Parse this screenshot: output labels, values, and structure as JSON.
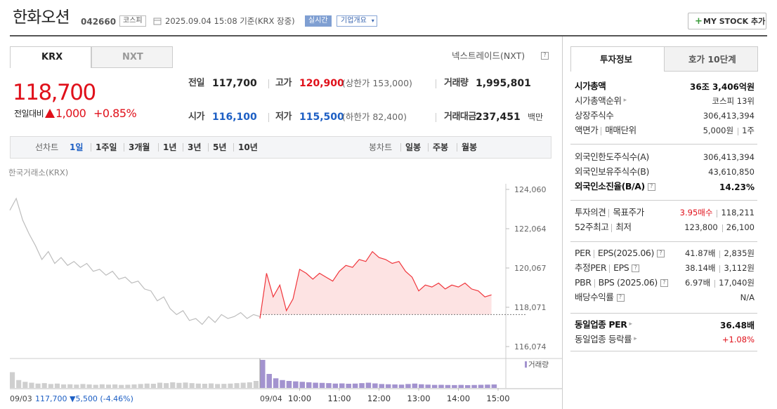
{
  "header": {
    "name": "한화오션",
    "code": "042660",
    "market": "코스피",
    "timestamp": "2025.09.04 15:08 기준(KRX 장중)",
    "realtime": "실시간",
    "company_info": "기업개요",
    "my_stock": "MY STOCK 추가"
  },
  "tabs": {
    "krx": "KRX",
    "nxt": "NXT",
    "nxt_link": "넥스트레이드(NXT)"
  },
  "quote": {
    "price": "118,700",
    "change_label": "전일대비",
    "change": "1,000",
    "change_pct": "+0.85%",
    "rows": [
      [
        {
          "label": "전일",
          "value": "117,700"
        },
        {
          "label": "고가",
          "value": "120,900",
          "extra": "(상한가 153,000)"
        },
        {
          "label": "거래량",
          "value": "1,995,801"
        }
      ],
      [
        {
          "label": "시가",
          "value": "116,100"
        },
        {
          "label": "저가",
          "value": "115,500",
          "extra": "(하한가 82,400)"
        },
        {
          "label": "거래대금",
          "value": "237,451",
          "unit": "백만"
        }
      ]
    ]
  },
  "toolbar": {
    "line_chart": "선차트",
    "periods": [
      "1일",
      "1주일",
      "3개월",
      "1년",
      "3년",
      "5년",
      "10년"
    ],
    "candle_chart": "봉차트",
    "candles": [
      "일봉",
      "주봉",
      "월봉"
    ]
  },
  "chart": {
    "source": "한국거래소(KRX)",
    "volume_label": "거래량",
    "baseline": 117700,
    "ylim": [
      115504,
      124345
    ],
    "yticks": [
      {
        "value": 124060,
        "label": "124,060"
      },
      {
        "value": 122064,
        "label": "122,064"
      },
      {
        "value": 120067,
        "label": "120,067"
      },
      {
        "value": 118071,
        "label": "118,071"
      },
      {
        "value": 116074,
        "label": "116,074"
      }
    ],
    "series": [
      {
        "date": "09/03",
        "summary": "117,700 ▼5,500 (-4.46%)",
        "color": "#bdbdbd",
        "volume_color": "#cfcfcf",
        "xlim": [
          0,
          390
        ],
        "x": [
          0,
          10,
          20,
          30,
          40,
          50,
          60,
          70,
          80,
          90,
          100,
          110,
          120,
          130,
          140,
          150,
          160,
          170,
          180,
          190,
          200,
          210,
          220,
          230,
          240,
          250,
          260,
          270,
          280,
          290,
          300,
          310,
          320,
          330,
          340,
          350,
          360,
          370,
          380,
          390
        ],
        "values": [
          123000,
          123600,
          122500,
          121800,
          121200,
          120500,
          120900,
          120300,
          120600,
          120200,
          120400,
          120100,
          120300,
          119900,
          120000,
          119700,
          119900,
          119500,
          119600,
          119300,
          119400,
          119000,
          118900,
          118400,
          118600,
          118000,
          117700,
          117900,
          117400,
          117500,
          117200,
          117600,
          117300,
          117700,
          117500,
          117600,
          117800,
          117500,
          117700,
          117600
        ],
        "volume": [
          180000,
          90000,
          70000,
          60000,
          50000,
          55000,
          45000,
          50000,
          40000,
          42000,
          38000,
          45000,
          40000,
          36000,
          42000,
          38000,
          40000,
          35000,
          37000,
          40000,
          45000,
          50000,
          48000,
          60000,
          55000,
          65000,
          58000,
          62000,
          55000,
          50000,
          48000,
          52000,
          45000,
          47000,
          50000,
          55000,
          60000,
          65000,
          80000,
          120000
        ]
      },
      {
        "date": "09/04",
        "color": "#f0353b",
        "fill": "#fde3e3",
        "volume_color": "#a393cf",
        "xlim": [
          0,
          360
        ],
        "xticks": [
          {
            "value": 60,
            "label": "10:00"
          },
          {
            "value": 120,
            "label": "11:00"
          },
          {
            "value": 180,
            "label": "12:00"
          },
          {
            "value": 240,
            "label": "13:00"
          },
          {
            "value": 300,
            "label": "14:00"
          },
          {
            "value": 360,
            "label": "15:00"
          }
        ],
        "x": [
          0,
          10,
          20,
          30,
          40,
          50,
          60,
          70,
          80,
          90,
          100,
          110,
          120,
          130,
          140,
          150,
          160,
          170,
          180,
          190,
          200,
          210,
          220,
          230,
          240,
          250,
          260,
          270,
          280,
          290,
          300,
          310,
          320,
          330,
          340,
          350
        ],
        "values": [
          117500,
          119800,
          118600,
          119200,
          117900,
          118500,
          120000,
          119800,
          119500,
          119800,
          119600,
          119400,
          119900,
          120200,
          120100,
          120500,
          120400,
          120900,
          120600,
          120500,
          120300,
          120400,
          119900,
          119600,
          118900,
          119200,
          119100,
          119300,
          119000,
          119200,
          119100,
          119300,
          119000,
          118900,
          118600,
          118700
        ],
        "volume": [
          320000,
          160000,
          110000,
          90000,
          80000,
          75000,
          70000,
          65000,
          60000,
          58000,
          55000,
          50000,
          52000,
          48000,
          50000,
          55000,
          60000,
          52000,
          45000,
          42000,
          40000,
          38000,
          45000,
          50000,
          42000,
          38000,
          35000,
          36000,
          34000,
          33000,
          35000,
          32000,
          34000,
          36000,
          38000,
          40000
        ]
      }
    ]
  },
  "side": {
    "tabs": [
      "투자정보",
      "호가 10단계"
    ],
    "groups": [
      [
        {
          "labels": [
            "시가총액"
          ],
          "values": [
            "36조 3,406억원"
          ]
        },
        {
          "labels": [
            "시가총액순위"
          ],
          "values": [
            "코스피 13위"
          ]
        },
        {
          "labels": [
            "상장주식수"
          ],
          "values": [
            "306,413,394"
          ]
        },
        {
          "labels": [
            "액면가",
            "매매단위"
          ],
          "values": [
            "5,000원",
            "1주"
          ]
        }
      ],
      [
        {
          "labels": [
            "외국인한도주식수(A)"
          ],
          "values": [
            "306,413,394"
          ]
        },
        {
          "labels": [
            "외국인보유주식수(B)"
          ],
          "values": [
            "43,610,850"
          ]
        },
        {
          "labels": [
            "외국인소진율(B/A)"
          ],
          "values": [
            "14.23%"
          ]
        }
      ],
      [
        {
          "labels": [
            "투자의견",
            "목표주가"
          ],
          "values": [
            "3.95매수",
            "118,211"
          ]
        },
        {
          "labels": [
            "52주최고",
            "최저"
          ],
          "values": [
            "123,800",
            "26,100"
          ]
        }
      ],
      [
        {
          "labels": [
            "PER",
            "EPS(2025.06)"
          ],
          "values": [
            "41.87배",
            "2,835원"
          ]
        },
        {
          "labels": [
            "추정PER",
            "EPS"
          ],
          "values": [
            "38.14배",
            "3,112원"
          ]
        },
        {
          "labels": [
            "PBR",
            "BPS (2025.06)"
          ],
          "values": [
            "6.97배",
            "17,040원"
          ]
        },
        {
          "labels": [
            "배당수익률"
          ],
          "values": [
            "N/A"
          ]
        }
      ],
      [
        {
          "labels": [
            "동일업종 PER"
          ],
          "values": [
            "36.48배"
          ]
        },
        {
          "labels": [
            "동일업종 등락률"
          ],
          "values": [
            "+1.08%"
          ]
        }
      ]
    ]
  }
}
